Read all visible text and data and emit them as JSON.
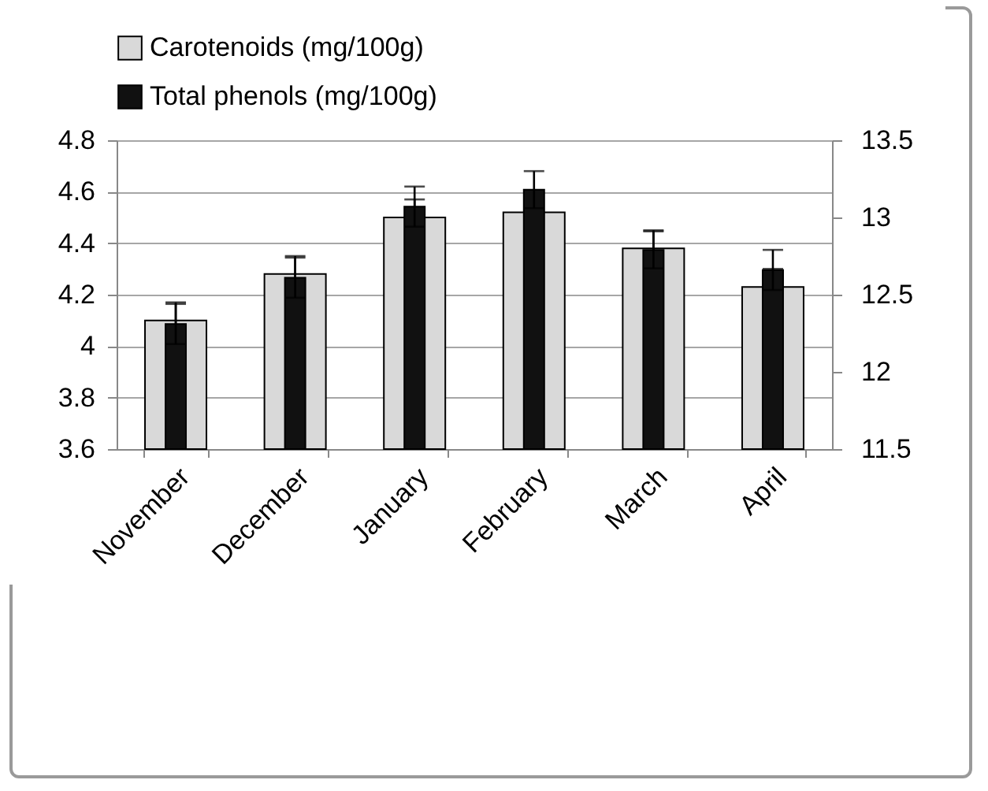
{
  "chart_data": {
    "type": "bar",
    "categories": [
      "November",
      "December",
      "January",
      "February",
      "March",
      "April"
    ],
    "series": [
      {
        "name": "Carotenoids (mg/100g)",
        "color": "#d9d9d9",
        "values": [
          4.1,
          4.28,
          4.5,
          4.52,
          4.38,
          4.23
        ],
        "errors": [
          0.07,
          0.07,
          0.07,
          0.07,
          0.07,
          0.07
        ]
      },
      {
        "name": "Total phenols (mg/100g)",
        "color": "#111111",
        "axis": "y2",
        "values": [
          12.31,
          12.61,
          13.07,
          13.18,
          12.79,
          12.66
        ],
        "errors": [
          0.13,
          0.13,
          0.13,
          0.12,
          0.12,
          0.13
        ]
      }
    ],
    "ylim": [
      3.6,
      4.8
    ],
    "yticks": [
      3.6,
      3.8,
      4,
      4.2,
      4.4,
      4.6,
      4.8
    ],
    "y2lim": [
      11.5,
      13.5
    ],
    "y2ticks": [
      11.5,
      12,
      12.5,
      13,
      13.5
    ],
    "grid": "y",
    "legend": "top"
  }
}
